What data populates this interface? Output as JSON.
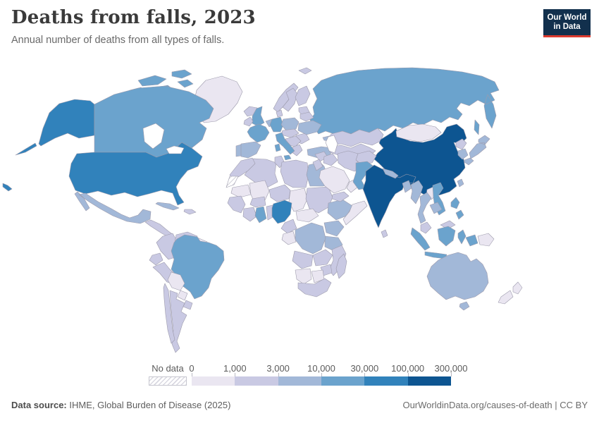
{
  "header": {
    "title": "Deaths from falls, 2023",
    "subtitle": "Annual number of deaths from all types of falls."
  },
  "logo": {
    "line1": "Our World",
    "line2": "in Data",
    "bg": "#12304d",
    "accent": "#dc3b2f"
  },
  "legend": {
    "no_data_label": "No data",
    "ticks": [
      "0",
      "1,000",
      "3,000",
      "10,000",
      "30,000",
      "100,000",
      "300,000"
    ],
    "colors": [
      "#eae6f1",
      "#c9c9e3",
      "#a2b8d8",
      "#6ba3cd",
      "#3182bb",
      "#0d5591"
    ]
  },
  "footer": {
    "source_label": "Data source:",
    "source_rest": " IHME, Global Burden of Disease (2025)",
    "attribution": "OurWorldinData.org/causes-of-death | CC BY"
  },
  "map": {
    "border_color": "#9d9bac",
    "ocean_color": "#ffffff",
    "regions": {
      "greenland": 0,
      "arctic_islands": 3,
      "alaska": 4,
      "canada": 3,
      "usa": 4,
      "hawaii": 4,
      "mexico": 2,
      "central_america": 1,
      "cuba": 2,
      "hispaniola": 1,
      "colombia": 1,
      "venezuela": 1,
      "guyanas": 0,
      "ecuador": 1,
      "peru": 1,
      "brazil": 3,
      "bolivia": 0,
      "paraguay": 0,
      "chile": 1,
      "argentina": 1,
      "uruguay": 1,
      "iceland": 1,
      "svalbard": 1,
      "norway": 1,
      "sweden": 1,
      "finland": 1,
      "denmark": 1,
      "baltics": 1,
      "belarus": 1,
      "uk": 3,
      "ireland": 1,
      "benelux": 2,
      "germany": 3,
      "france": 3,
      "spain": 2,
      "portugal": 2,
      "italy": 3,
      "poland": 2,
      "czechia_hungary": 1,
      "balkans": 1,
      "romania": 1,
      "greece": 1,
      "ukraine": 2,
      "turkey": 2,
      "caucasus": 2,
      "russia": 3,
      "kazakhstan": 1,
      "central_asia": 1,
      "syria": 1,
      "jordan_israel": 1,
      "iraq": 1,
      "iran": 1,
      "saudi_arabia": 0,
      "yemen": 1,
      "oman": 0,
      "afghanistan": 1,
      "pakistan": 3,
      "india": 5,
      "nepal": 2,
      "bangladesh": 2,
      "sri_lanka": 1,
      "china": 5,
      "mongolia": 0,
      "north_korea": 1,
      "south_korea": 2,
      "japan": 2,
      "taiwan": 2,
      "myanmar": 2,
      "thailand": 2,
      "laos": 0,
      "vietnam": 3,
      "cambodia": 2,
      "malaysia": 1,
      "indonesia": 3,
      "philippines": 3,
      "papua_new_guinea": 0,
      "australia": 2,
      "tasmania": 2,
      "new_zealand": 0,
      "algeria": 1,
      "tunisia": 1,
      "libya": 1,
      "egypt": 2,
      "morocco": 1,
      "western_sahara": "no_data",
      "mauritania": 0,
      "mali": 0,
      "niger": 1,
      "chad": 0,
      "sudan": 1,
      "west_africa": 1,
      "burkina": 1,
      "ivory_coast": 1,
      "ghana": 3,
      "togo_benin": 1,
      "nigeria": 4,
      "cameroon": 1,
      "car_southsudan": 0,
      "ethiopia": 2,
      "somalia": 0,
      "kenya_uganda": 2,
      "tanzania": 2,
      "drc": 2,
      "congo_gabon": 0,
      "angola": 1,
      "zambia": 1,
      "zimbabwe": 1,
      "mozambique": 1,
      "namibia": 0,
      "botswana": 0,
      "south_africa": 1,
      "madagascar": 1
    }
  },
  "chart_data": {
    "type": "choropleth",
    "title": "Deaths from falls, 2023",
    "subtitle": "Annual number of deaths from all types of falls.",
    "unit": "deaths",
    "legend_position": "bottom",
    "bins": [
      {
        "range": "0–1,000",
        "color": "#eae6f1"
      },
      {
        "range": "1,000–3,000",
        "color": "#c9c9e3"
      },
      {
        "range": "3,000–10,000",
        "color": "#a2b8d8"
      },
      {
        "range": "10,000–30,000",
        "color": "#6ba3cd"
      },
      {
        "range": "30,000–100,000",
        "color": "#3182bb"
      },
      {
        "range": "100,000–300,000",
        "color": "#0d5591"
      },
      {
        "range": "No data",
        "color": "hatched"
      }
    ],
    "values": {
      "China": "100,000–300,000",
      "India": "100,000–300,000",
      "United States": "30,000–100,000",
      "Nigeria": "30,000–100,000",
      "Russia": "10,000–30,000",
      "Brazil": "10,000–30,000",
      "Canada": "10,000–30,000",
      "United Kingdom": "10,000–30,000",
      "France": "10,000–30,000",
      "Germany": "10,000–30,000",
      "Italy": "10,000–30,000",
      "Pakistan": "10,000–30,000",
      "Vietnam": "10,000–30,000",
      "Indonesia": "10,000–30,000",
      "Philippines": "10,000–30,000",
      "Ghana": "10,000–30,000",
      "Mexico": "3,000–10,000",
      "Spain": "3,000–10,000",
      "Poland": "3,000–10,000",
      "Ukraine": "3,000–10,000",
      "Turkey": "3,000–10,000",
      "Egypt": "3,000–10,000",
      "Japan": "3,000–10,000",
      "South Korea": "3,000–10,000",
      "Thailand": "3,000–10,000",
      "Myanmar": "3,000–10,000",
      "Australia": "3,000–10,000",
      "Ethiopia": "3,000–10,000",
      "Kenya": "3,000–10,000",
      "Tanzania": "3,000–10,000",
      "DR Congo": "3,000–10,000",
      "Cuba": "3,000–10,000",
      "Nepal": "3,000–10,000",
      "Bangladesh": "3,000–10,000",
      "Iran": "1,000–3,000",
      "Kazakhstan": "1,000–3,000",
      "Afghanistan": "1,000–3,000",
      "Colombia": "1,000–3,000",
      "Peru": "1,000–3,000",
      "Chile": "1,000–3,000",
      "Argentina": "1,000–3,000",
      "Venezuela": "1,000–3,000",
      "South Africa": "1,000–3,000",
      "Algeria": "1,000–3,000",
      "Morocco": "1,000–3,000",
      "Sudan": "1,000–3,000",
      "Madagascar": "1,000–3,000",
      "Norway": "1,000–3,000",
      "Sweden": "1,000–3,000",
      "Finland": "1,000–3,000",
      "Greece": "1,000–3,000",
      "Malaysia": "1,000–3,000",
      "Saudi Arabia": "0–1,000",
      "Mongolia": "0–1,000",
      "Bolivia": "0–1,000",
      "Paraguay": "0–1,000",
      "Greenland": "0–1,000",
      "Somalia": "0–1,000",
      "Chad": "0–1,000",
      "Mali": "0–1,000",
      "Namibia": "0–1,000",
      "Botswana": "0–1,000",
      "Laos": "0–1,000",
      "Papua New Guinea": "0–1,000",
      "New Zealand": "0–1,000",
      "Oman": "0–1,000",
      "Western Sahara": "No data"
    }
  }
}
